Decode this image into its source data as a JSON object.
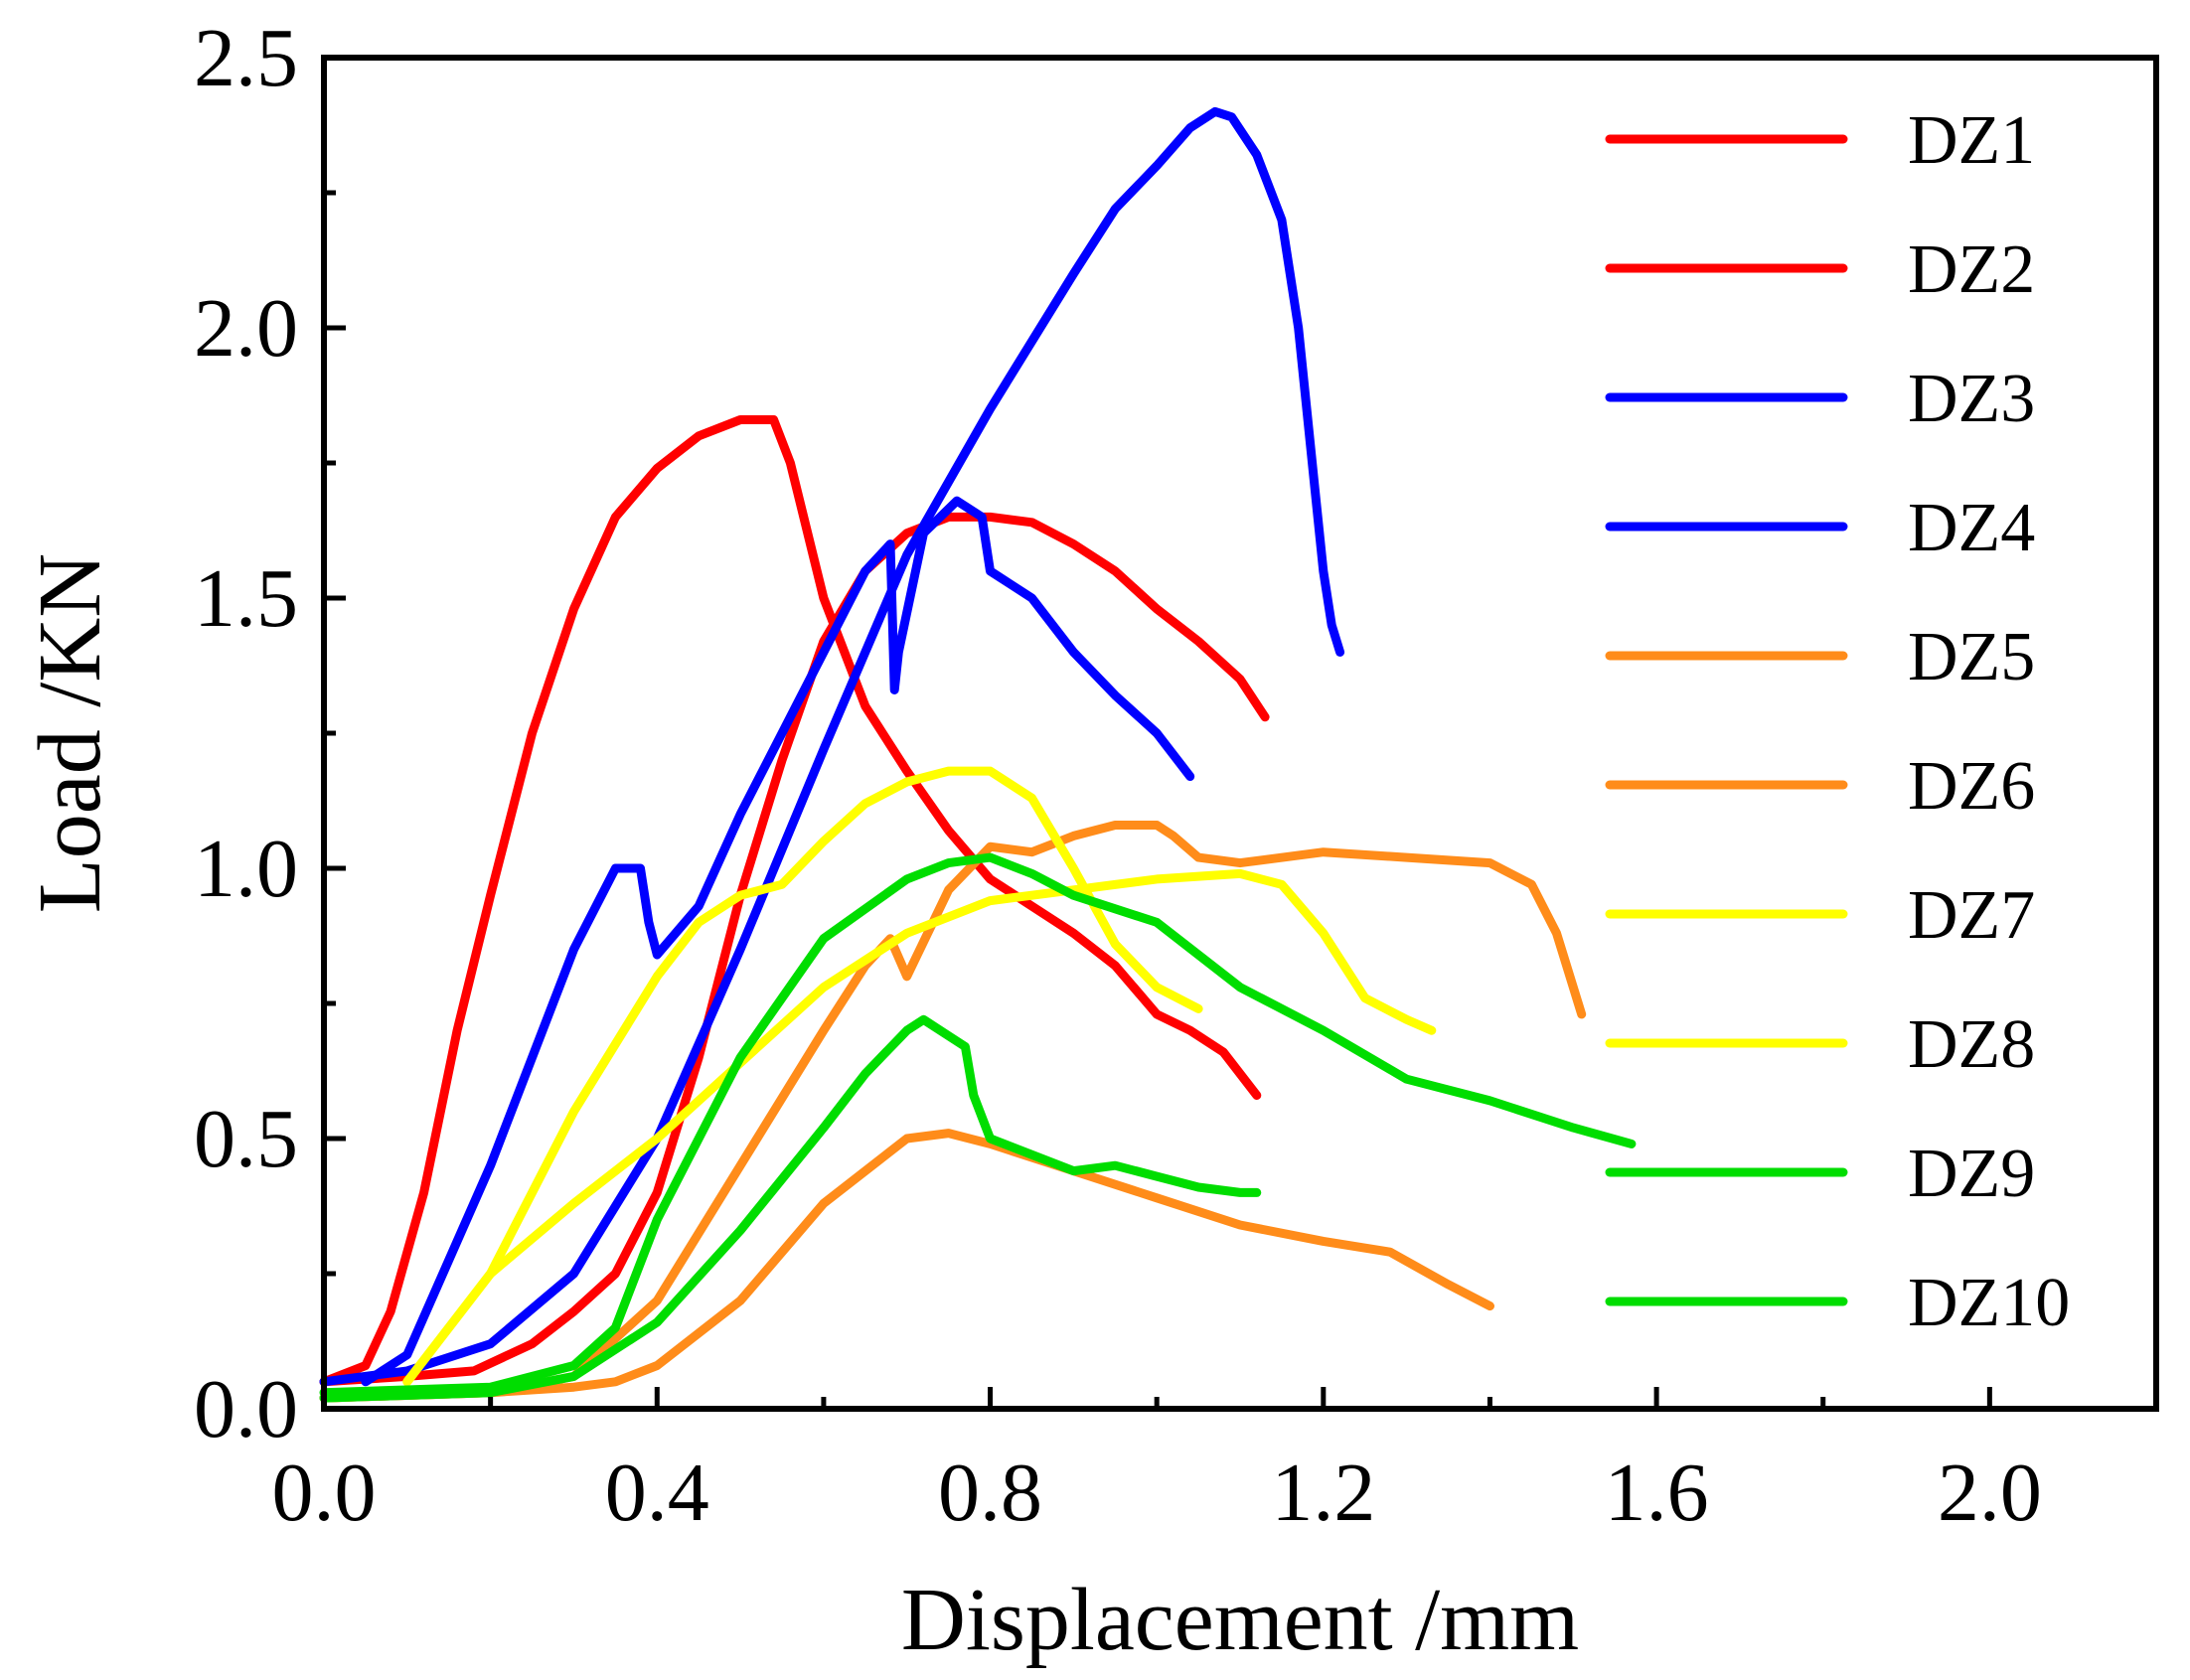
{
  "chart_data": {
    "type": "line",
    "title": "",
    "xlabel": "Displacement /mm",
    "ylabel": "Load /KN",
    "xlim": [
      0.0,
      2.2
    ],
    "ylim": [
      0.0,
      2.5
    ],
    "xticks": [
      0.0,
      0.4,
      0.8,
      1.2,
      1.6,
      2.0
    ],
    "xtick_labels": [
      "0.0",
      "0.4",
      "0.8",
      "1.2",
      "1.6",
      "2.0"
    ],
    "yticks": [
      0.0,
      0.5,
      1.0,
      1.5,
      2.0,
      2.5
    ],
    "ytick_labels": [
      "0.0",
      "0.5",
      "1.0",
      "1.5",
      "2.0",
      "2.5"
    ],
    "grid": false,
    "legend_position": "right",
    "series": [
      {
        "name": "DZ1",
        "color": "#ff0000",
        "x": [
          0.0,
          0.05,
          0.08,
          0.12,
          0.16,
          0.2,
          0.25,
          0.3,
          0.35,
          0.4,
          0.45,
          0.5,
          0.54,
          0.56,
          0.6,
          0.65,
          0.7,
          0.75,
          0.8,
          0.85,
          0.9,
          0.95,
          1.0,
          1.04,
          1.08,
          1.12
        ],
        "y": [
          0.05,
          0.08,
          0.18,
          0.4,
          0.7,
          0.95,
          1.25,
          1.48,
          1.65,
          1.74,
          1.8,
          1.83,
          1.83,
          1.75,
          1.5,
          1.3,
          1.18,
          1.07,
          0.98,
          0.93,
          0.88,
          0.82,
          0.73,
          0.7,
          0.66,
          0.58
        ]
      },
      {
        "name": "DZ2",
        "color": "#ff0000",
        "x": [
          0.0,
          0.1,
          0.18,
          0.25,
          0.3,
          0.35,
          0.4,
          0.45,
          0.5,
          0.55,
          0.6,
          0.65,
          0.7,
          0.75,
          0.8,
          0.85,
          0.9,
          0.95,
          1.0,
          1.05,
          1.1,
          1.13
        ],
        "y": [
          0.05,
          0.06,
          0.07,
          0.12,
          0.18,
          0.25,
          0.4,
          0.65,
          0.95,
          1.2,
          1.42,
          1.55,
          1.62,
          1.65,
          1.65,
          1.64,
          1.6,
          1.55,
          1.48,
          1.42,
          1.35,
          1.28
        ]
      },
      {
        "name": "DZ3",
        "color": "#0000ff",
        "x": [
          0.0,
          0.1,
          0.2,
          0.3,
          0.4,
          0.5,
          0.6,
          0.7,
          0.8,
          0.9,
          0.95,
          1.0,
          1.04,
          1.07,
          1.09,
          1.12,
          1.15,
          1.17,
          1.19,
          1.2,
          1.21,
          1.22
        ],
        "y": [
          0.05,
          0.07,
          0.12,
          0.25,
          0.5,
          0.85,
          1.22,
          1.58,
          1.85,
          2.1,
          2.22,
          2.3,
          2.37,
          2.4,
          2.39,
          2.32,
          2.2,
          2.0,
          1.7,
          1.55,
          1.45,
          1.4
        ]
      },
      {
        "name": "DZ4",
        "color": "#0000ff",
        "x": [
          0.05,
          0.1,
          0.2,
          0.3,
          0.35,
          0.38,
          0.39,
          0.4,
          0.45,
          0.5,
          0.55,
          0.6,
          0.65,
          0.68,
          0.685,
          0.69,
          0.72,
          0.76,
          0.79,
          0.8,
          0.85,
          0.9,
          0.95,
          1.0,
          1.04
        ],
        "y": [
          0.05,
          0.1,
          0.45,
          0.85,
          1.0,
          1.0,
          0.9,
          0.84,
          0.93,
          1.1,
          1.25,
          1.4,
          1.55,
          1.6,
          1.33,
          1.4,
          1.62,
          1.68,
          1.65,
          1.55,
          1.5,
          1.4,
          1.32,
          1.25,
          1.17
        ]
      },
      {
        "name": "DZ5",
        "color": "#ff8c1a",
        "x": [
          0.0,
          0.2,
          0.3,
          0.35,
          0.4,
          0.5,
          0.6,
          0.7,
          0.75,
          0.8,
          0.9,
          1.0,
          1.1,
          1.2,
          1.28,
          1.35,
          1.4
        ],
        "y": [
          0.02,
          0.03,
          0.04,
          0.05,
          0.08,
          0.2,
          0.38,
          0.5,
          0.51,
          0.49,
          0.44,
          0.39,
          0.34,
          0.31,
          0.29,
          0.23,
          0.19
        ]
      },
      {
        "name": "DZ6",
        "color": "#ff8c1a",
        "x": [
          0.0,
          0.2,
          0.3,
          0.4,
          0.5,
          0.6,
          0.65,
          0.68,
          0.7,
          0.75,
          0.8,
          0.85,
          0.9,
          0.95,
          1.0,
          1.02,
          1.05,
          1.1,
          1.2,
          1.3,
          1.4,
          1.45,
          1.48,
          1.5,
          1.51
        ],
        "y": [
          0.02,
          0.03,
          0.06,
          0.2,
          0.45,
          0.7,
          0.82,
          0.87,
          0.8,
          0.96,
          1.04,
          1.03,
          1.06,
          1.08,
          1.08,
          1.06,
          1.02,
          1.01,
          1.03,
          1.02,
          1.01,
          0.97,
          0.88,
          0.78,
          0.73
        ]
      },
      {
        "name": "DZ7",
        "color": "#ffff00",
        "x": [
          0.1,
          0.2,
          0.3,
          0.4,
          0.45,
          0.5,
          0.55,
          0.6,
          0.65,
          0.7,
          0.75,
          0.8,
          0.85,
          0.9,
          0.95,
          1.0,
          1.05
        ],
        "y": [
          0.05,
          0.25,
          0.55,
          0.8,
          0.9,
          0.95,
          0.97,
          1.05,
          1.12,
          1.16,
          1.18,
          1.18,
          1.13,
          1.0,
          0.86,
          0.78,
          0.74
        ]
      },
      {
        "name": "DZ8",
        "color": "#ffff00",
        "x": [
          0.1,
          0.2,
          0.3,
          0.4,
          0.5,
          0.6,
          0.7,
          0.8,
          0.9,
          1.0,
          1.1,
          1.15,
          1.2,
          1.25,
          1.3,
          1.33
        ],
        "y": [
          0.05,
          0.25,
          0.38,
          0.5,
          0.64,
          0.78,
          0.88,
          0.94,
          0.96,
          0.98,
          0.99,
          0.97,
          0.88,
          0.76,
          0.72,
          0.7
        ]
      },
      {
        "name": "DZ9",
        "color": "#00dd00",
        "x": [
          0.0,
          0.2,
          0.3,
          0.35,
          0.4,
          0.5,
          0.6,
          0.7,
          0.75,
          0.8,
          0.85,
          0.9,
          1.0,
          1.1,
          1.2,
          1.3,
          1.4,
          1.5,
          1.57
        ],
        "y": [
          0.03,
          0.04,
          0.08,
          0.15,
          0.35,
          0.65,
          0.87,
          0.98,
          1.01,
          1.02,
          0.99,
          0.95,
          0.9,
          0.78,
          0.7,
          0.61,
          0.57,
          0.52,
          0.49
        ]
      },
      {
        "name": "DZ10",
        "color": "#00dd00",
        "x": [
          0.0,
          0.2,
          0.3,
          0.4,
          0.5,
          0.6,
          0.65,
          0.7,
          0.72,
          0.75,
          0.77,
          0.78,
          0.8,
          0.85,
          0.9,
          0.95,
          1.0,
          1.05,
          1.1,
          1.12
        ],
        "y": [
          0.02,
          0.03,
          0.06,
          0.16,
          0.33,
          0.52,
          0.62,
          0.7,
          0.72,
          0.69,
          0.67,
          0.58,
          0.5,
          0.47,
          0.44,
          0.45,
          0.43,
          0.41,
          0.4,
          0.4
        ]
      }
    ]
  }
}
